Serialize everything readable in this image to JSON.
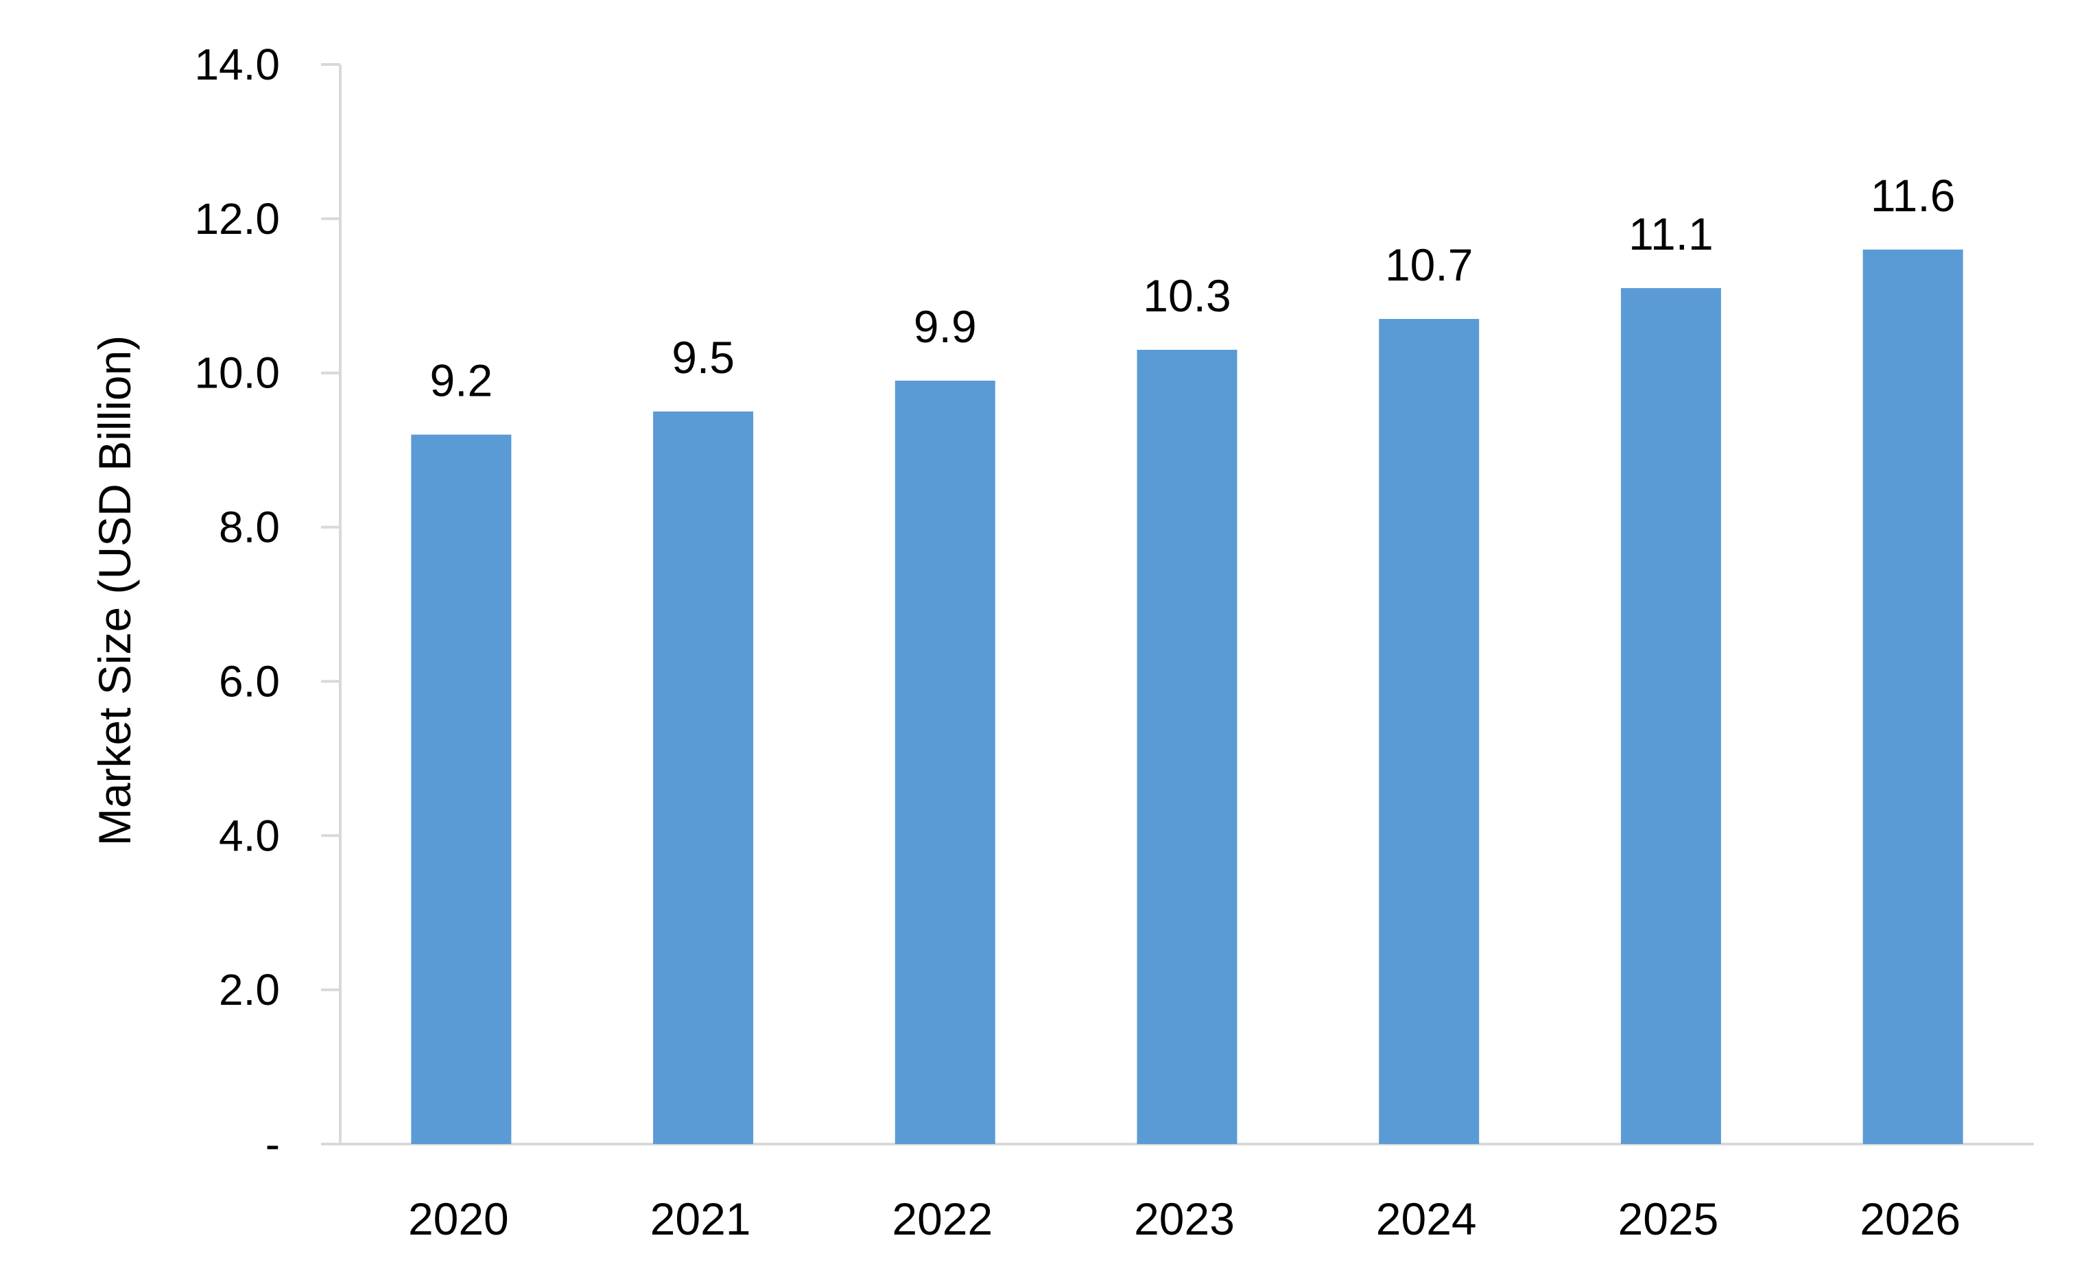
{
  "chart_data": {
    "type": "bar",
    "title": "",
    "xlabel": "",
    "ylabel": "Market Size (USD Billion)",
    "categories": [
      "2020",
      "2021",
      "2022",
      "2023",
      "2024",
      "2025",
      "2026"
    ],
    "values": [
      9.2,
      9.5,
      9.9,
      10.3,
      10.7,
      11.1,
      11.6
    ],
    "data_labels": [
      "9.2",
      "9.5",
      "9.9",
      "10.3",
      "10.7",
      "11.1",
      "11.6"
    ],
    "ylim": [
      0,
      14
    ],
    "y_ticks": [
      0,
      2,
      4,
      6,
      8,
      10,
      12,
      14
    ],
    "y_tick_labels": [
      "-",
      "2.0",
      "4.0",
      "6.0",
      "8.0",
      "10.0",
      "12.0",
      "14.0"
    ],
    "grid": false,
    "legend": "none",
    "colors": {
      "bar": "#5B9BD5",
      "axis": "#D9D9D9",
      "text": "#000000"
    }
  }
}
